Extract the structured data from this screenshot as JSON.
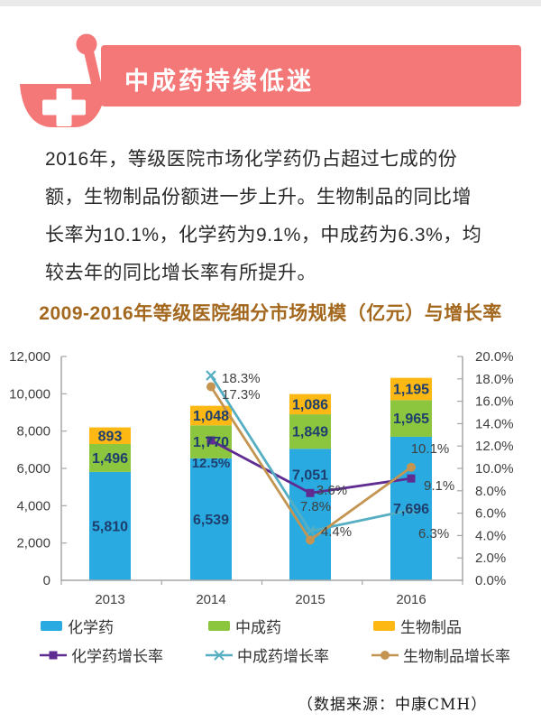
{
  "header": {
    "title": "中成药持续低迷",
    "banner_color": "#f47878"
  },
  "intro": {
    "lines": [
      "2016年，等级医院市场化学药仍占超过七成的份",
      "额，生物制品份额进一步上升。生物制品的同比增",
      "长率为10.1%，化学药为9.1%，中成药为6.3%，均",
      "较去年的同比增长率有所提升。"
    ]
  },
  "chart_data": {
    "type": "bar",
    "subtype": "stacked-bars-with-growth-lines",
    "title": "2009-2016年等级医院细分市场规模（亿元）与增长率",
    "categories": [
      "2013",
      "2014",
      "2015",
      "2016"
    ],
    "bar_series": [
      {
        "name": "化学药",
        "color": "#29abe2",
        "values": [
          5810,
          6539,
          7051,
          7696
        ]
      },
      {
        "name": "中成药",
        "color": "#8cc63e",
        "values": [
          1496,
          1770,
          1849,
          1965
        ]
      },
      {
        "name": "生物制品",
        "color": "#fdb813",
        "values": [
          893,
          1048,
          1086,
          1195
        ]
      }
    ],
    "line_series": [
      {
        "name": "化学药增长率",
        "color": "#5f2d91",
        "marker": "square",
        "values": [
          null,
          12.5,
          7.8,
          9.1
        ]
      },
      {
        "name": "中成药增长率",
        "color": "#56aec2",
        "marker": "x",
        "values": [
          null,
          18.3,
          4.4,
          6.3
        ]
      },
      {
        "name": "生物制品增长率",
        "color": "#c49551",
        "marker": "circle",
        "values": [
          null,
          17.3,
          3.6,
          10.1
        ]
      }
    ],
    "left_axis": {
      "min": 0,
      "max": 12000,
      "step": 2000,
      "ticks": [
        "0",
        "2,000",
        "4,000",
        "6,000",
        "8,000",
        "10,000",
        "12,000"
      ]
    },
    "right_axis": {
      "min": 0,
      "max": 20,
      "step": 2,
      "ticks": [
        "0.0%",
        "2.0%",
        "4.0%",
        "6.0%",
        "8.0%",
        "10.0%",
        "12.0%",
        "14.0%",
        "16.0%",
        "18.0%",
        "20.0%"
      ]
    },
    "gridlines": false,
    "legend_position": "bottom",
    "label_colors": {
      "bar_labels": "#1e3f6e",
      "pct_labels": "#404040"
    }
  },
  "source": "（数据来源：中康CMH）"
}
